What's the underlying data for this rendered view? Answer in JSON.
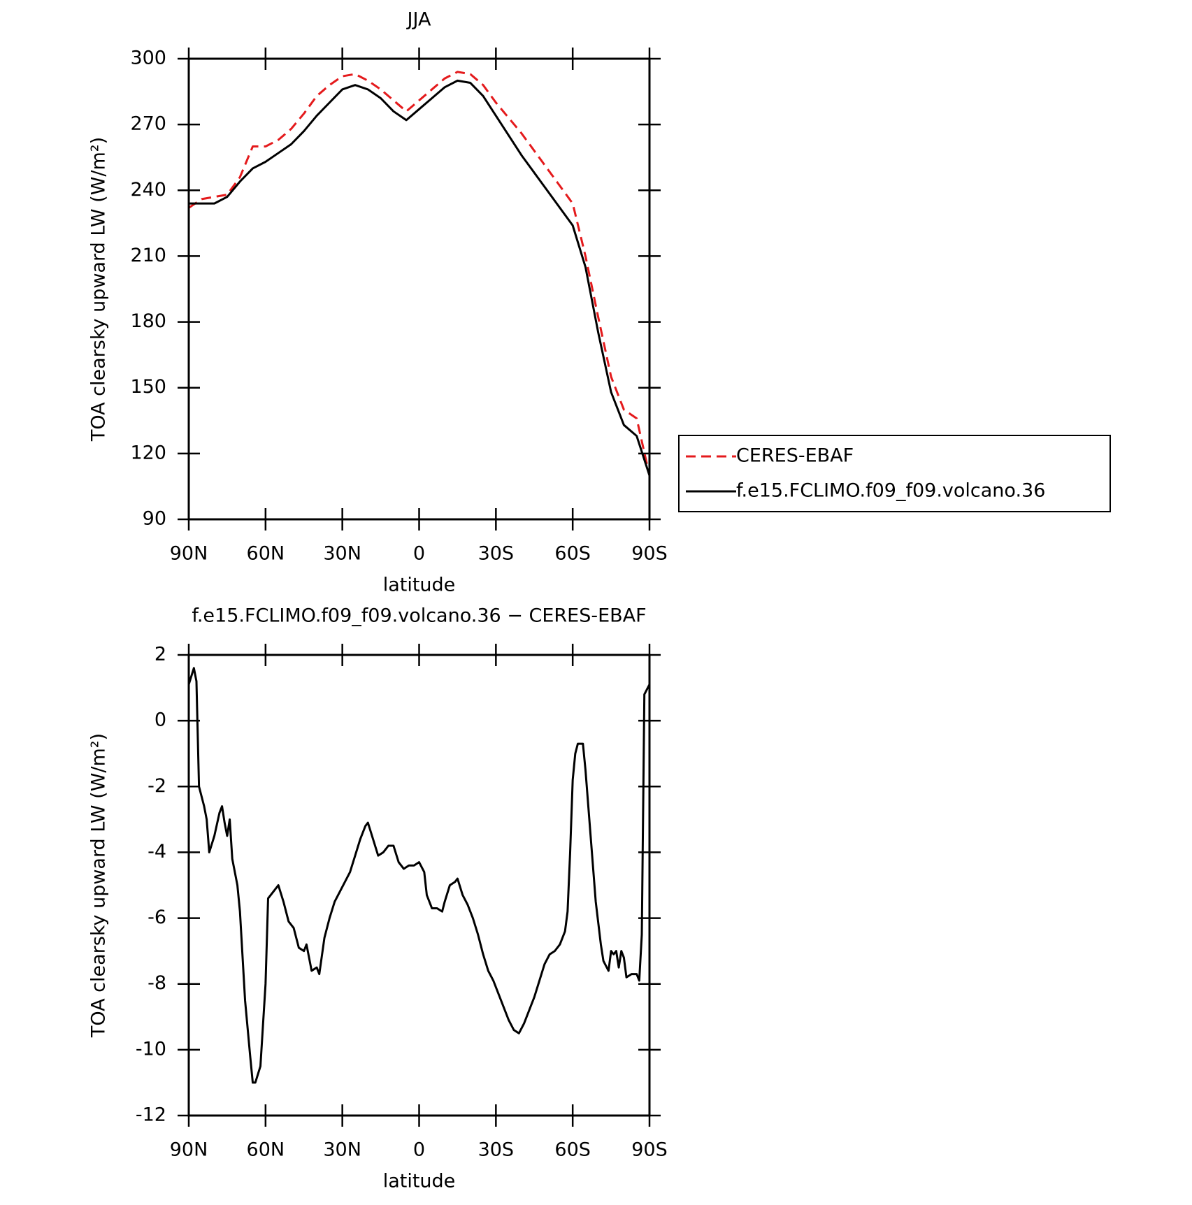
{
  "chart_data": [
    {
      "type": "line",
      "title": "JJA",
      "xlabel": "latitude",
      "ylabel": "TOA clearsky upward LW (W/m²)",
      "x": [
        90,
        85,
        80,
        75,
        70,
        65,
        60,
        55,
        50,
        45,
        40,
        35,
        30,
        25,
        20,
        15,
        10,
        5,
        0,
        -5,
        -10,
        -15,
        -20,
        -25,
        -30,
        -35,
        -40,
        -45,
        -50,
        -55,
        -60,
        -65,
        -70,
        -75,
        -80,
        -85,
        -90
      ],
      "series": [
        {
          "name": "CERES-EBAF",
          "color": "#e41a1c",
          "style": "dashed",
          "values": [
            232,
            236,
            237,
            238,
            246,
            260,
            260,
            263,
            268,
            275,
            283,
            288,
            292,
            293,
            290,
            286,
            281,
            276,
            281,
            286,
            291,
            294,
            293,
            288,
            280,
            273,
            266,
            258,
            250,
            242,
            234,
            210,
            182,
            155,
            140,
            136,
            110
          ]
        },
        {
          "name": "f.e15.FCLIMO.f09_f09.volcano.36",
          "color": "#000000",
          "style": "solid",
          "values": [
            234,
            234,
            234,
            237,
            244,
            250,
            253,
            257,
            261,
            267,
            274,
            280,
            286,
            288,
            286,
            282,
            276,
            272,
            277,
            282,
            287,
            290,
            289,
            283,
            274,
            265,
            256,
            248,
            240,
            232,
            224,
            205,
            175,
            148,
            133,
            128,
            110
          ]
        }
      ],
      "xlim": [
        90,
        -90
      ],
      "xticks": [
        {
          "value": 90,
          "label": "90N"
        },
        {
          "value": 60,
          "label": "60N"
        },
        {
          "value": 30,
          "label": "30N"
        },
        0,
        {
          "value": -30,
          "label": "30S"
        },
        {
          "value": -60,
          "label": "60S"
        },
        {
          "value": -90,
          "label": "90S"
        }
      ],
      "ylim": [
        90,
        300
      ],
      "yticks": [
        90,
        120,
        150,
        180,
        210,
        240,
        270,
        300
      ],
      "legend": "right"
    },
    {
      "type": "line",
      "title": "f.e15.FCLIMO.f09_f09.volcano.36 − CERES-EBAF",
      "xlabel": "latitude",
      "ylabel": "TOA clearsky upward LW (W/m²)",
      "x": [
        90,
        88,
        87,
        86,
        84,
        83,
        82,
        80,
        78,
        77,
        76,
        75,
        74,
        73,
        71,
        70,
        68,
        66,
        65,
        64,
        62,
        60,
        59,
        57,
        55,
        53,
        51,
        49,
        47,
        45,
        44,
        42,
        40,
        39,
        37,
        35,
        33,
        31,
        29,
        27,
        25,
        23,
        21,
        20,
        18,
        16,
        14,
        12,
        10,
        8,
        6,
        4,
        2,
        0,
        -2,
        -3,
        -5,
        -7,
        -9,
        -10,
        -12,
        -14,
        -15,
        -17,
        -19,
        -21,
        -23,
        -25,
        -27,
        -29,
        -31,
        -33,
        -35,
        -37,
        -39,
        -41,
        -43,
        -45,
        -47,
        -49,
        -51,
        -53,
        -55,
        -57,
        -58,
        -59,
        -60,
        -61,
        -62,
        -64,
        -65,
        -67,
        -69,
        -71,
        -72,
        -74,
        -75,
        -76,
        -77,
        -78,
        -79,
        -80,
        -81,
        -83,
        -85,
        -86,
        -87,
        -88,
        -90
      ],
      "values": [
        1.1,
        1.6,
        1.2,
        -2,
        -2.6,
        -3,
        -4,
        -3.5,
        -2.8,
        -2.6,
        -3.1,
        -3.5,
        -3,
        -4.2,
        -5,
        -5.8,
        -8.5,
        -10.2,
        -11,
        -11,
        -10.5,
        -8,
        -5.4,
        -5.2,
        -5,
        -5.5,
        -6.1,
        -6.3,
        -6.9,
        -7,
        -6.8,
        -7.6,
        -7.5,
        -7.7,
        -6.6,
        -6,
        -5.5,
        -5.2,
        -4.9,
        -4.6,
        -4.1,
        -3.6,
        -3.2,
        -3.1,
        -3.6,
        -4.1,
        -4,
        -3.8,
        -3.8,
        -4.3,
        -4.5,
        -4.4,
        -4.4,
        -4.3,
        -4.6,
        -5.3,
        -5.7,
        -5.7,
        -5.8,
        -5.5,
        -5,
        -4.9,
        -4.8,
        -5.3,
        -5.6,
        -6,
        -6.5,
        -7.1,
        -7.6,
        -7.9,
        -8.3,
        -8.7,
        -9.1,
        -9.4,
        -9.5,
        -9.2,
        -8.8,
        -8.4,
        -7.9,
        -7.4,
        -7.1,
        -7,
        -6.8,
        -6.4,
        -5.8,
        -4,
        -1.8,
        -1,
        -0.7,
        -0.7,
        -1.5,
        -3.5,
        -5.5,
        -6.8,
        -7.3,
        -7.6,
        -7,
        -7.1,
        -7,
        -7.5,
        -7,
        -7.2,
        -7.8,
        -7.7,
        -7.7,
        -7.9,
        -6.5,
        0.8,
        1.1
      ],
      "color": "#000000",
      "xlim": [
        90,
        -90
      ],
      "xticks": [
        {
          "value": 90,
          "label": "90N"
        },
        {
          "value": 60,
          "label": "60N"
        },
        {
          "value": 30,
          "label": "30N"
        },
        0,
        {
          "value": -30,
          "label": "30S"
        },
        {
          "value": -60,
          "label": "60S"
        },
        {
          "value": -90,
          "label": "90S"
        }
      ],
      "ylim": [
        -12,
        2
      ],
      "yticks": [
        -12,
        -10,
        -8,
        -6,
        -4,
        -2,
        0,
        2
      ]
    }
  ]
}
